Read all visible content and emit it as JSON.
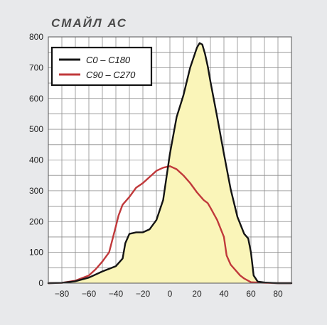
{
  "chart_data": {
    "type": "area",
    "title": "СМАЙЛ АС",
    "xlabel": "",
    "ylabel": "",
    "xlim": [
      -90,
      90
    ],
    "ylim": [
      0,
      800
    ],
    "x_ticks": [
      "-80",
      "-60",
      "-40",
      "-20",
      "0",
      "20",
      "40",
      "60",
      "80"
    ],
    "y_ticks": [
      "0",
      "100",
      "200",
      "300",
      "400",
      "500",
      "600",
      "700",
      "800"
    ],
    "grid": true,
    "legend_position": "top-left",
    "series": [
      {
        "name": "C0 – C180",
        "color": "#141414",
        "fill": "#faf5b9",
        "x": [
          -90,
          -80,
          -70,
          -60,
          -50,
          -40,
          -35,
          -33,
          -30,
          -25,
          -20,
          -15,
          -10,
          -5,
          0,
          5,
          10,
          15,
          20,
          22,
          24,
          26,
          28,
          30,
          35,
          40,
          45,
          50,
          55,
          58,
          60,
          62,
          65,
          70,
          80,
          90
        ],
        "y": [
          0,
          1,
          6,
          18,
          38,
          55,
          80,
          130,
          160,
          165,
          165,
          175,
          205,
          270,
          420,
          540,
          610,
          700,
          765,
          780,
          775,
          745,
          705,
          655,
          540,
          420,
          305,
          215,
          160,
          145,
          100,
          25,
          5,
          2,
          0,
          0
        ]
      },
      {
        "name": "C90 – C270",
        "color": "#c0393b",
        "x": [
          -90,
          -80,
          -70,
          -60,
          -55,
          -50,
          -45,
          -40,
          -38,
          -35,
          -30,
          -25,
          -20,
          -15,
          -10,
          -5,
          0,
          5,
          10,
          15,
          20,
          25,
          28,
          30,
          35,
          40,
          42,
          45,
          50,
          52,
          55,
          60,
          70,
          80,
          90
        ],
        "y": [
          0,
          1,
          8,
          25,
          45,
          70,
          100,
          185,
          220,
          255,
          280,
          310,
          325,
          345,
          365,
          375,
          380,
          370,
          350,
          325,
          295,
          270,
          260,
          245,
          205,
          150,
          90,
          60,
          35,
          25,
          15,
          3,
          1,
          0,
          0
        ]
      }
    ]
  }
}
